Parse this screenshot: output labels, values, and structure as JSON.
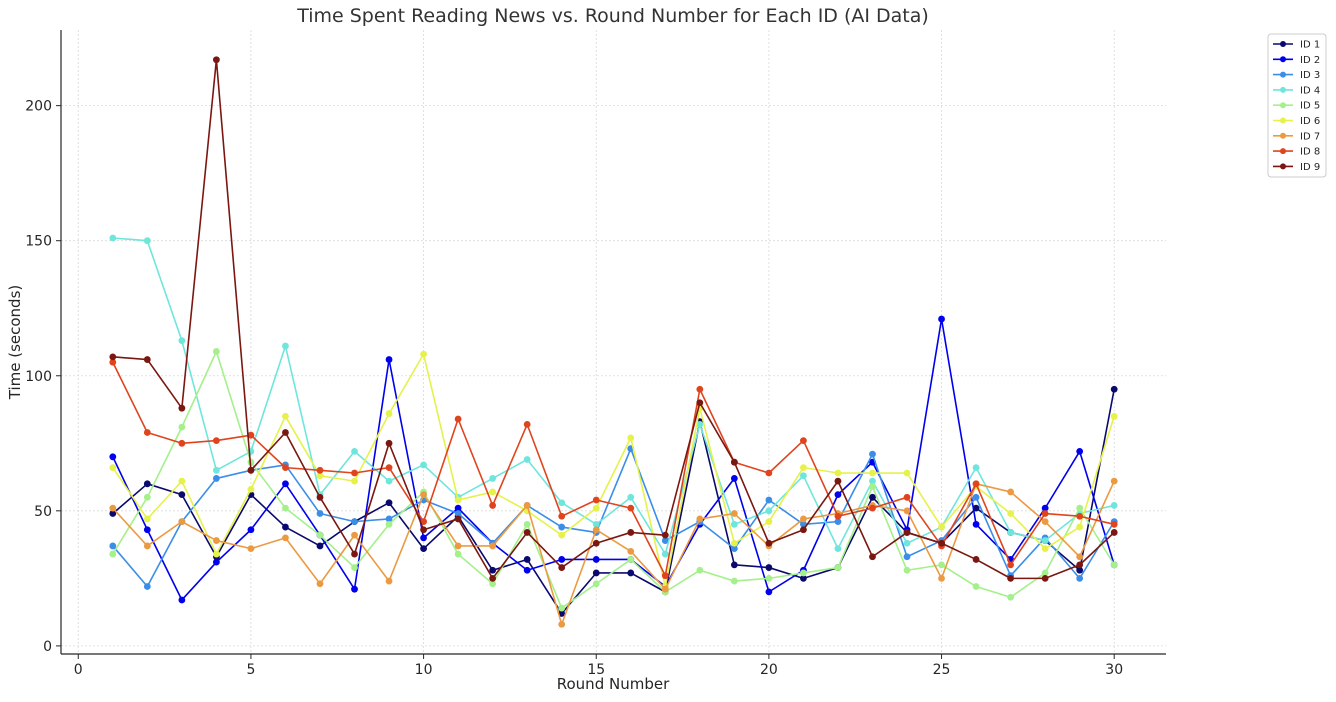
{
  "chart_data": {
    "type": "line",
    "title": "Time Spent Reading News vs. Round Number for Each ID (AI Data)",
    "xlabel": "Round Number",
    "ylabel": "Time (seconds)",
    "xlim": [
      -0.5,
      31.5
    ],
    "ylim": [
      -3,
      228
    ],
    "xticks": [
      0,
      5,
      10,
      15,
      20,
      25,
      30
    ],
    "yticks": [
      0,
      50,
      100,
      150,
      200
    ],
    "grid": true,
    "legend_placement": "top-right",
    "x": [
      1,
      2,
      3,
      4,
      5,
      6,
      7,
      8,
      9,
      10,
      11,
      12,
      13,
      14,
      15,
      16,
      17,
      18,
      19,
      20,
      21,
      22,
      23,
      24,
      25,
      26,
      27,
      28,
      29,
      30
    ],
    "series": [
      {
        "name": "ID 1",
        "color": "#0a0a6e",
        "values": [
          49,
          60,
          56,
          33,
          56,
          44,
          37,
          46,
          53,
          36,
          48,
          28,
          32,
          12,
          27,
          27,
          20,
          83,
          30,
          29,
          25,
          29,
          55,
          42,
          38,
          51,
          42,
          39,
          28,
          95
        ]
      },
      {
        "name": "ID 2",
        "color": "#0000ee",
        "values": [
          70,
          43,
          17,
          31,
          43,
          60,
          41,
          21,
          106,
          40,
          51,
          38,
          28,
          32,
          32,
          32,
          22,
          45,
          62,
          20,
          28,
          56,
          68,
          43,
          121,
          45,
          32,
          51,
          72,
          30
        ]
      },
      {
        "name": "ID 3",
        "color": "#3a8ee8",
        "values": [
          37,
          22,
          46,
          62,
          65,
          67,
          49,
          46,
          47,
          54,
          49,
          38,
          52,
          44,
          42,
          73,
          39,
          46,
          36,
          54,
          45,
          46,
          71,
          33,
          39,
          55,
          26,
          40,
          25,
          46
        ]
      },
      {
        "name": "ID 4",
        "color": "#6fe6dc",
        "values": [
          151,
          150,
          113,
          65,
          72,
          111,
          56,
          72,
          61,
          67,
          55,
          62,
          69,
          53,
          45,
          55,
          34,
          82,
          45,
          50,
          63,
          36,
          61,
          38,
          44,
          66,
          42,
          39,
          49,
          52
        ]
      },
      {
        "name": "ID 5",
        "color": "#a4f08a",
        "values": [
          34,
          55,
          81,
          109,
          68,
          51,
          41,
          29,
          45,
          57,
          34,
          23,
          45,
          14,
          23,
          32,
          20,
          28,
          24,
          25,
          27,
          29,
          59,
          28,
          30,
          22,
          18,
          27,
          51,
          30
        ]
      },
      {
        "name": "ID 6",
        "color": "#e6f24a",
        "values": [
          66,
          47,
          61,
          34,
          58,
          85,
          63,
          61,
          86,
          108,
          54,
          57,
          50,
          41,
          51,
          77,
          22,
          88,
          38,
          46,
          66,
          64,
          64,
          64,
          44,
          59,
          49,
          36,
          44,
          85
        ]
      },
      {
        "name": "ID 7",
        "color": "#ec9a42",
        "values": [
          51,
          37,
          46,
          39,
          36,
          40,
          23,
          41,
          24,
          56,
          37,
          37,
          52,
          8,
          43,
          35,
          21,
          47,
          49,
          37,
          47,
          49,
          52,
          50,
          25,
          60,
          57,
          46,
          33,
          61
        ]
      },
      {
        "name": "ID 8",
        "color": "#e0441e",
        "values": [
          105,
          79,
          75,
          76,
          78,
          66,
          65,
          64,
          66,
          46,
          84,
          52,
          82,
          48,
          54,
          51,
          26,
          95,
          68,
          64,
          76,
          48,
          51,
          55,
          37,
          60,
          30,
          49,
          48,
          45
        ]
      },
      {
        "name": "ID 9",
        "color": "#7a1710",
        "values": [
          107,
          106,
          88,
          217,
          65,
          79,
          55,
          34,
          75,
          43,
          47,
          25,
          42,
          29,
          38,
          42,
          41,
          90,
          68,
          38,
          43,
          61,
          33,
          42,
          38,
          32,
          25,
          25,
          30,
          42
        ]
      }
    ]
  }
}
